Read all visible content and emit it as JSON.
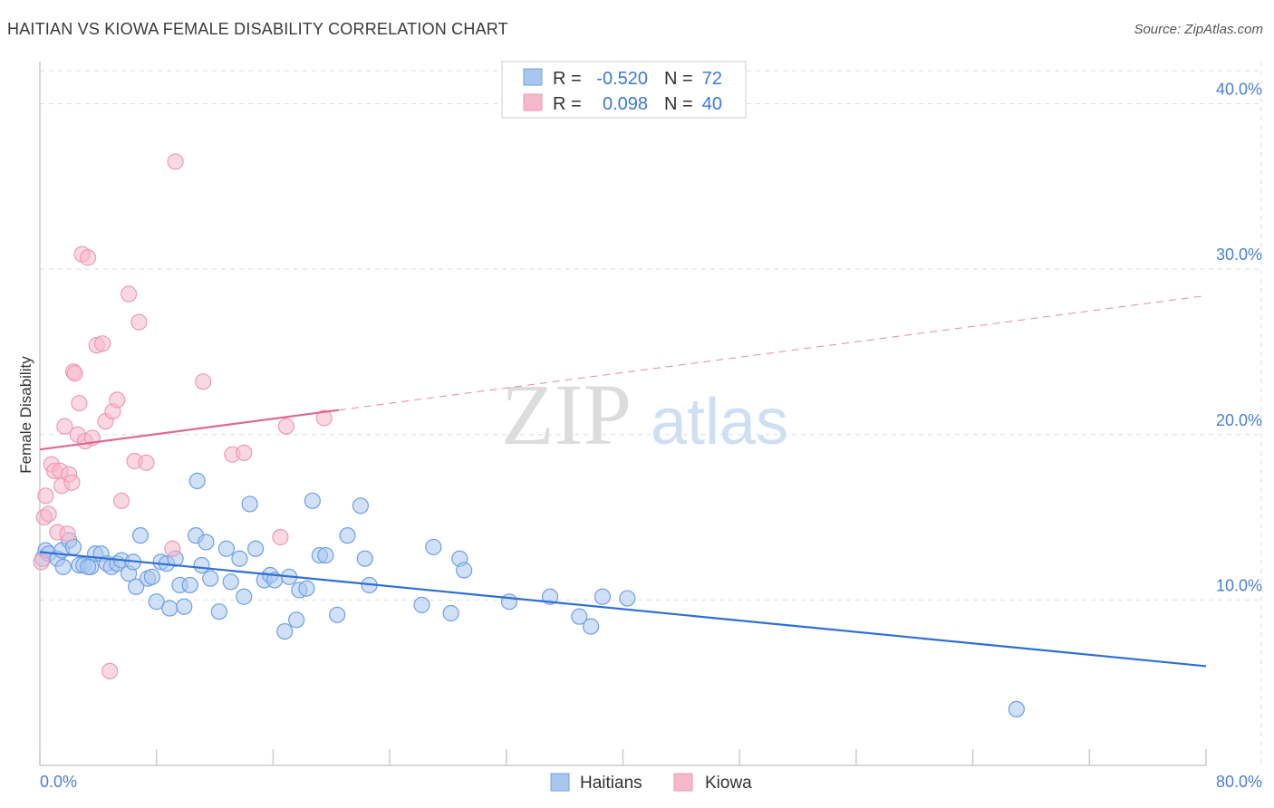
{
  "title": "HAITIAN VS KIOWA FEMALE DISABILITY CORRELATION CHART",
  "source": "Source: ZipAtlas.com",
  "watermark": {
    "zip": "ZIP",
    "atlas": "atlas"
  },
  "legend": {
    "rows": [
      {
        "r_label": "R =",
        "r_value": "-0.520",
        "n_label": "N =",
        "n_value": "72",
        "color": "#a9c6ef"
      },
      {
        "r_label": "R =",
        "r_value": "0.098",
        "n_label": "N =",
        "n_value": "40",
        "color": "#f5b8cb"
      }
    ]
  },
  "chart_data": {
    "type": "scatter",
    "title": "HAITIAN VS KIOWA FEMALE DISABILITY CORRELATION CHART",
    "xlabel": "",
    "ylabel": "Female Disability",
    "xlim": [
      0,
      80
    ],
    "ylim": [
      0,
      42
    ],
    "x_tick_labels": [
      "0.0%",
      "80.0%"
    ],
    "y_ticks": [
      10,
      20,
      30,
      40
    ],
    "y_tick_labels": [
      "10.0%",
      "20.0%",
      "30.0%",
      "40.0%"
    ],
    "grid": true,
    "legend_placement": "top-center",
    "series": [
      {
        "name": "Haitians",
        "color": "#6fa0e3",
        "fill": "#a9c6ef",
        "line_color": "#2f6fd6",
        "trend": {
          "x": [
            0,
            80
          ],
          "y": [
            12.9,
            6.0
          ],
          "dashed_from": null
        },
        "points": [
          [
            0.2,
            12.5
          ],
          [
            0.4,
            13.0
          ],
          [
            0.6,
            12.8
          ],
          [
            1.2,
            12.5
          ],
          [
            1.5,
            13.0
          ],
          [
            2.0,
            13.6
          ],
          [
            2.3,
            13.2
          ],
          [
            2.7,
            12.1
          ],
          [
            3.0,
            12.1
          ],
          [
            3.5,
            12.0
          ],
          [
            3.8,
            12.8
          ],
          [
            4.2,
            12.8
          ],
          [
            4.6,
            12.2
          ],
          [
            4.9,
            12.0
          ],
          [
            5.3,
            12.2
          ],
          [
            5.6,
            12.4
          ],
          [
            6.1,
            11.6
          ],
          [
            6.4,
            12.3
          ],
          [
            6.6,
            10.8
          ],
          [
            6.9,
            13.9
          ],
          [
            7.4,
            11.3
          ],
          [
            7.7,
            11.4
          ],
          [
            8.0,
            9.9
          ],
          [
            8.3,
            12.3
          ],
          [
            8.7,
            12.2
          ],
          [
            8.9,
            9.5
          ],
          [
            9.3,
            12.5
          ],
          [
            9.6,
            10.9
          ],
          [
            9.9,
            9.6
          ],
          [
            10.3,
            10.9
          ],
          [
            10.7,
            13.9
          ],
          [
            11.1,
            12.1
          ],
          [
            11.4,
            13.5
          ],
          [
            11.7,
            11.3
          ],
          [
            12.3,
            9.3
          ],
          [
            12.8,
            13.1
          ],
          [
            13.1,
            11.1
          ],
          [
            13.7,
            12.5
          ],
          [
            14.0,
            10.2
          ],
          [
            14.4,
            15.8
          ],
          [
            14.8,
            13.1
          ],
          [
            15.4,
            11.2
          ],
          [
            15.8,
            11.5
          ],
          [
            16.1,
            11.2
          ],
          [
            16.8,
            8.1
          ],
          [
            17.1,
            11.4
          ],
          [
            17.6,
            8.8
          ],
          [
            17.8,
            10.6
          ],
          [
            18.3,
            10.7
          ],
          [
            18.7,
            16.0
          ],
          [
            19.2,
            12.7
          ],
          [
            19.6,
            12.7
          ],
          [
            20.4,
            9.1
          ],
          [
            21.1,
            13.9
          ],
          [
            22.0,
            15.7
          ],
          [
            22.3,
            12.5
          ],
          [
            22.6,
            10.9
          ],
          [
            26.2,
            9.7
          ],
          [
            27.0,
            13.2
          ],
          [
            28.2,
            9.2
          ],
          [
            28.8,
            12.5
          ],
          [
            29.1,
            11.8
          ],
          [
            32.2,
            9.9
          ],
          [
            35.0,
            10.2
          ],
          [
            37.0,
            9.0
          ],
          [
            37.8,
            8.4
          ],
          [
            38.6,
            10.2
          ],
          [
            40.3,
            10.1
          ],
          [
            67.0,
            3.4
          ],
          [
            10.8,
            17.2
          ],
          [
            1.6,
            12.0
          ],
          [
            3.3,
            12.0
          ]
        ]
      },
      {
        "name": "Kiowa",
        "color": "#ef9ab5",
        "fill": "#f5b8cb",
        "line_color": "#e06a92",
        "trend": {
          "x": [
            0,
            80
          ],
          "y": [
            19.1,
            28.4
          ],
          "dashed_from": 20.5
        },
        "points": [
          [
            0.1,
            12.3
          ],
          [
            0.3,
            15.0
          ],
          [
            0.4,
            16.3
          ],
          [
            0.6,
            15.2
          ],
          [
            0.8,
            18.2
          ],
          [
            1.0,
            17.8
          ],
          [
            1.2,
            14.1
          ],
          [
            1.4,
            17.8
          ],
          [
            1.5,
            16.9
          ],
          [
            1.7,
            20.5
          ],
          [
            1.9,
            14.0
          ],
          [
            2.0,
            17.6
          ],
          [
            2.2,
            17.1
          ],
          [
            2.3,
            23.8
          ],
          [
            2.4,
            23.7
          ],
          [
            2.6,
            20.0
          ],
          [
            2.7,
            21.9
          ],
          [
            2.9,
            30.9
          ],
          [
            3.1,
            19.6
          ],
          [
            3.3,
            30.7
          ],
          [
            3.6,
            19.8
          ],
          [
            3.9,
            25.4
          ],
          [
            4.3,
            25.5
          ],
          [
            4.5,
            20.8
          ],
          [
            4.8,
            5.7
          ],
          [
            5.0,
            21.4
          ],
          [
            5.3,
            22.1
          ],
          [
            5.6,
            16.0
          ],
          [
            6.1,
            28.5
          ],
          [
            6.5,
            18.4
          ],
          [
            6.8,
            26.8
          ],
          [
            7.3,
            18.3
          ],
          [
            9.1,
            13.1
          ],
          [
            9.3,
            36.5
          ],
          [
            11.2,
            23.2
          ],
          [
            13.2,
            18.8
          ],
          [
            14.0,
            18.9
          ],
          [
            16.5,
            13.8
          ],
          [
            16.9,
            20.5
          ],
          [
            19.5,
            21.0
          ]
        ]
      }
    ]
  },
  "bottom_legend": [
    {
      "label": "Haitians",
      "color": "#a9c6ef"
    },
    {
      "label": "Kiowa",
      "color": "#f5b8cb"
    }
  ]
}
